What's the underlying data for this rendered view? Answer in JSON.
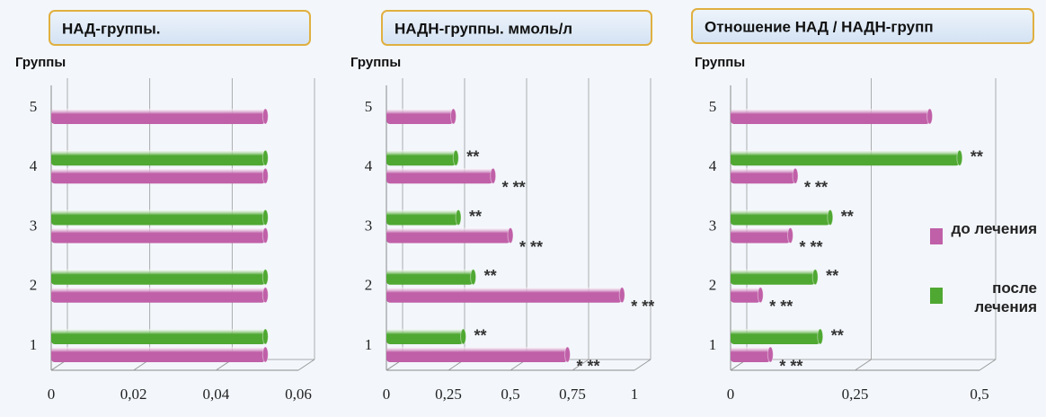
{
  "chart_data": [
    {
      "type": "barh",
      "title": "НАД-группы.",
      "ylabel": "Группы",
      "categories": [
        "1",
        "2",
        "3",
        "4",
        "5"
      ],
      "series": [
        {
          "color": "#c060a8",
          "values": [
            0.052,
            0.052,
            0.052,
            0.052,
            0.052
          ]
        },
        {
          "color": "#4fa832",
          "values": [
            0.052,
            0.052,
            0.052,
            0.052,
            null
          ]
        }
      ],
      "xlim": [
        0,
        0.06
      ],
      "xticks": [
        0,
        {
          "value": 0.02,
          "label": "0,02"
        },
        {
          "value": 0.04,
          "label": "0,04"
        },
        {
          "value": 0.06,
          "label": "0,06"
        }
      ],
      "grid": true
    },
    {
      "type": "barh",
      "title": "НАДН-группы. ммоль/л",
      "ylabel": "Группы",
      "categories": [
        "1",
        "2",
        "3",
        "4",
        "5"
      ],
      "series": [
        {
          "color": "#c060a8",
          "values": [
            0.73,
            0.95,
            0.5,
            0.43,
            0.27
          ],
          "annotations": [
            "* **",
            "* **",
            "* **",
            "* **",
            null
          ]
        },
        {
          "color": "#4fa832",
          "values": [
            0.31,
            0.35,
            0.29,
            0.28,
            null
          ],
          "annotations": [
            "**",
            "**",
            "**",
            "**",
            null
          ]
        }
      ],
      "xlim": [
        0,
        1
      ],
      "xticks": [
        0,
        {
          "value": 0.25,
          "label": "0,25"
        },
        {
          "value": 0.5,
          "label": "0,5"
        },
        {
          "value": 0.75,
          "label": "0,75"
        },
        1
      ],
      "grid": true
    },
    {
      "type": "barh",
      "title": "Отношение НАД / НАДН-групп",
      "ylabel": "Группы",
      "categories": [
        "1",
        "2",
        "3",
        "4",
        "5"
      ],
      "series": [
        {
          "name": "до лечения",
          "color": "#c060a8",
          "values": [
            0.08,
            0.06,
            0.12,
            0.13,
            0.4
          ],
          "annotations": [
            "* **",
            "* **",
            "* **",
            "* **",
            null
          ]
        },
        {
          "name": "после лечения",
          "color": "#4fa832",
          "values": [
            0.18,
            0.17,
            0.2,
            0.46,
            null
          ],
          "annotations": [
            "**",
            "**",
            "**",
            "**",
            null
          ]
        }
      ],
      "xlim": [
        0,
        0.5
      ],
      "xticks": [
        0,
        {
          "value": 0.25,
          "label": "0,25"
        },
        {
          "value": 0.5,
          "label": "0,5"
        }
      ],
      "grid": true,
      "legend": "right"
    }
  ]
}
